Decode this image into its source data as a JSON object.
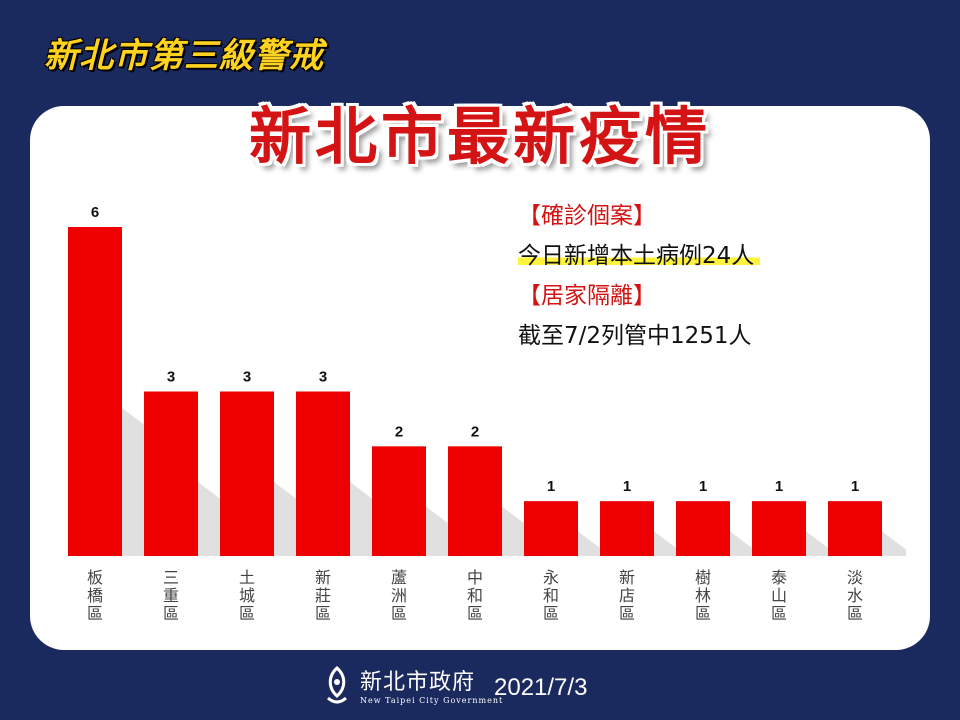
{
  "banner": "新北市第三級警戒",
  "title": "新北市最新疫情",
  "info": {
    "confirmed_header": "【確診個案】",
    "confirmed_text": "今日新增本土病例24人",
    "quarantine_header": "【居家隔離】",
    "quarantine_text": "截至7/2列管中1251人"
  },
  "footer": {
    "org_name": "新北市政府",
    "org_name_en": "New Taipei City Government",
    "date": "2021/7/3"
  },
  "colors": {
    "bar": "#ee0000",
    "background": "#1b2a5e",
    "title": "#d41414",
    "banner": "#ffd21f",
    "highlight": "#fff23a"
  },
  "chart_data": {
    "type": "bar",
    "categories": [
      "板橋區",
      "三重區",
      "土城區",
      "新莊區",
      "蘆洲區",
      "中和區",
      "永和區",
      "新店區",
      "樹林區",
      "泰山區",
      "淡水區"
    ],
    "values": [
      6,
      3,
      3,
      3,
      2,
      2,
      1,
      1,
      1,
      1,
      1
    ],
    "title": "",
    "xlabel": "",
    "ylabel": "",
    "ylim": [
      0,
      6
    ]
  }
}
